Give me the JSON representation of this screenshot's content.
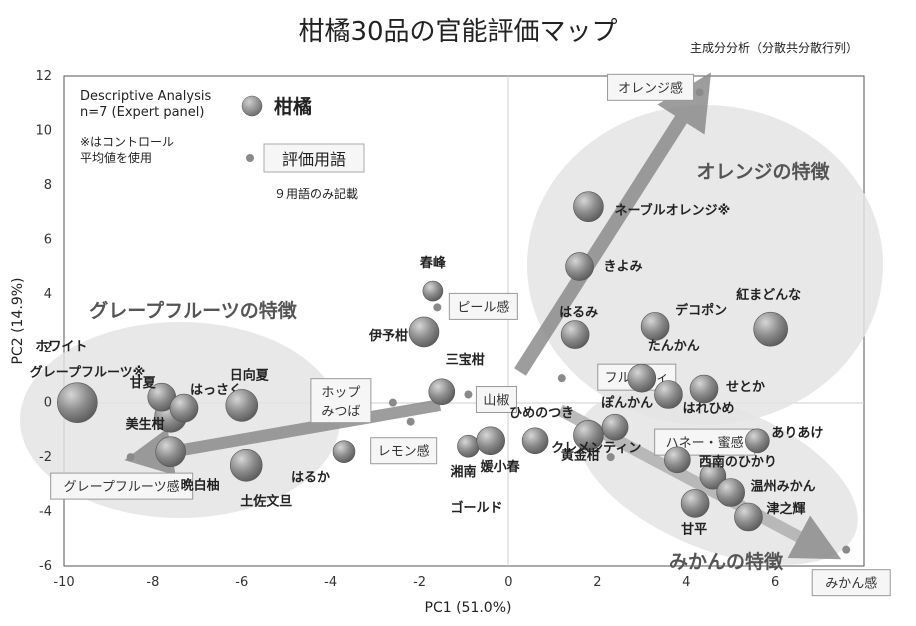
{
  "chart_data": {
    "type": "scatter",
    "title": "柑橘30品の官能評価マップ",
    "subtitle": "主成分分析（分散共分散行列）",
    "xlabel": "PC1 (51.0%)",
    "ylabel": "PC2 (14.9%)",
    "xlim": [
      -10,
      8
    ],
    "ylim": [
      -6,
      12
    ],
    "xticks": [
      "-10",
      "-8",
      "-6",
      "-4",
      "-2",
      "0",
      "2",
      "4",
      "6"
    ],
    "yticks": [
      "12",
      "10",
      "8",
      "6",
      "4",
      "2",
      "0",
      "-2",
      "-4",
      "-6"
    ],
    "grid": false,
    "legend": {
      "info": [
        "Descriptive Analysis",
        "n=7 (Expert panel)"
      ],
      "note": [
        "※はコントロール",
        "平均値を使用"
      ],
      "citrus_label": "柑橘",
      "term_label": "評価用語",
      "term_note": "９用語のみ記載"
    },
    "series": [
      {
        "name": "柑橘",
        "points": [
          {
            "label": "ホワイトグレープフルーツ※",
            "x": -9.7,
            "y": 0.0
          },
          {
            "label": "美生柑",
            "x": -7.6,
            "y": -0.5
          },
          {
            "label": "甘夏",
            "x": -7.8,
            "y": 0.2
          },
          {
            "label": "はっさく",
            "x": -7.3,
            "y": -0.2
          },
          {
            "label": "日向夏",
            "x": -6.0,
            "y": -0.1
          },
          {
            "label": "晩白柚",
            "x": -7.6,
            "y": -1.8
          },
          {
            "label": "土佐文旦",
            "x": -5.9,
            "y": -2.3
          },
          {
            "label": "はるか",
            "x": -3.7,
            "y": -1.8
          },
          {
            "label": "春峰",
            "x": -1.7,
            "y": 4.1
          },
          {
            "label": "伊予柑",
            "x": -1.9,
            "y": 2.6
          },
          {
            "label": "三宝柑",
            "x": -1.5,
            "y": 0.4
          },
          {
            "label": "湘南ゴールド",
            "x": -0.9,
            "y": -1.6
          },
          {
            "label": "媛小春",
            "x": -0.4,
            "y": -1.4
          },
          {
            "label": "ひめのつき",
            "x": 0.6,
            "y": -1.4
          },
          {
            "label": "黄金柑",
            "x": 1.8,
            "y": -1.2
          },
          {
            "label": "はるみ",
            "x": 1.5,
            "y": 2.5
          },
          {
            "label": "ネーブルオレンジ※",
            "x": 1.8,
            "y": 7.2
          },
          {
            "label": "きよみ",
            "x": 1.6,
            "y": 5.0
          },
          {
            "label": "デコポン",
            "x": 3.3,
            "y": 2.8
          },
          {
            "label": "紅まどんな",
            "x": 5.9,
            "y": 2.7
          },
          {
            "label": "たんかん",
            "x": 3.0,
            "y": 0.9
          },
          {
            "label": "はれひめ",
            "x": 3.6,
            "y": 0.3
          },
          {
            "label": "せとか",
            "x": 4.4,
            "y": 0.5
          },
          {
            "label": "ぽんかん",
            "x": 2.4,
            "y": -0.9
          },
          {
            "label": "クレメンティン",
            "x": 3.8,
            "y": -2.1
          },
          {
            "label": "ありあけ",
            "x": 5.6,
            "y": -1.4
          },
          {
            "label": "西南のひかり",
            "x": 4.6,
            "y": -2.7
          },
          {
            "label": "温州みかん",
            "x": 5.0,
            "y": -3.3
          },
          {
            "label": "甘平",
            "x": 4.2,
            "y": -3.7
          },
          {
            "label": "津之輝",
            "x": 5.4,
            "y": -4.2
          }
        ]
      },
      {
        "name": "評価用語",
        "points": [
          {
            "label": "オレンジ感",
            "x": 4.3,
            "y": 11.4
          },
          {
            "label": "ピール感",
            "x": -1.6,
            "y": 3.5
          },
          {
            "label": "フルーティ",
            "x": 1.2,
            "y": 0.9
          },
          {
            "label": "ホップみつば",
            "x": -2.6,
            "y": 0.0
          },
          {
            "label": "山椒",
            "x": -0.9,
            "y": 0.3
          },
          {
            "label": "レモン感",
            "x": -2.2,
            "y": -0.7
          },
          {
            "label": "ハネー・蜜感",
            "x": 2.3,
            "y": -2.0
          },
          {
            "label": "グレープフルーツ感",
            "x": -8.5,
            "y": -2.0
          },
          {
            "label": "みかん感",
            "x": 7.6,
            "y": -5.4
          }
        ]
      }
    ],
    "annotations": {
      "orange_zone": "オレンジの特徴",
      "grapefruit_zone": "グレープフルーツの特徴",
      "mikan_zone": "みかんの特徴"
    }
  },
  "colors": {
    "zone": "#e4e4e4",
    "arrow": "#8c8c8c",
    "citrus": "#7a7a7a",
    "term": "#8a8a8a",
    "frame": "#555555"
  }
}
